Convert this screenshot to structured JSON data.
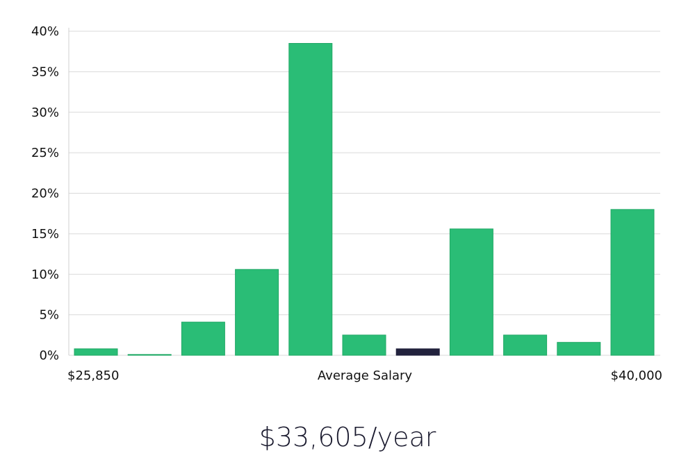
{
  "chart_data": {
    "type": "bar",
    "title": "",
    "xlabel": "Average Salary",
    "ylabel": "",
    "x_min_label": "$25,850",
    "x_max_label": "$40,000",
    "ylim": [
      0,
      40
    ],
    "y_ticks": [
      0,
      5,
      10,
      15,
      20,
      25,
      30,
      35,
      40
    ],
    "y_tick_labels": [
      "0%",
      "5%",
      "10%",
      "15%",
      "20%",
      "25%",
      "30%",
      "35%",
      "40%"
    ],
    "grid": true,
    "values": [
      0.8,
      0.1,
      4.1,
      10.6,
      38.5,
      2.5,
      0.8,
      15.6,
      2.5,
      1.6,
      18.0
    ],
    "highlight_index": 6,
    "colors": {
      "bar": "#2abd76",
      "bar_edge": "#22a866",
      "highlight": "#22223d"
    }
  },
  "salary": {
    "display": "$33,605/year"
  }
}
